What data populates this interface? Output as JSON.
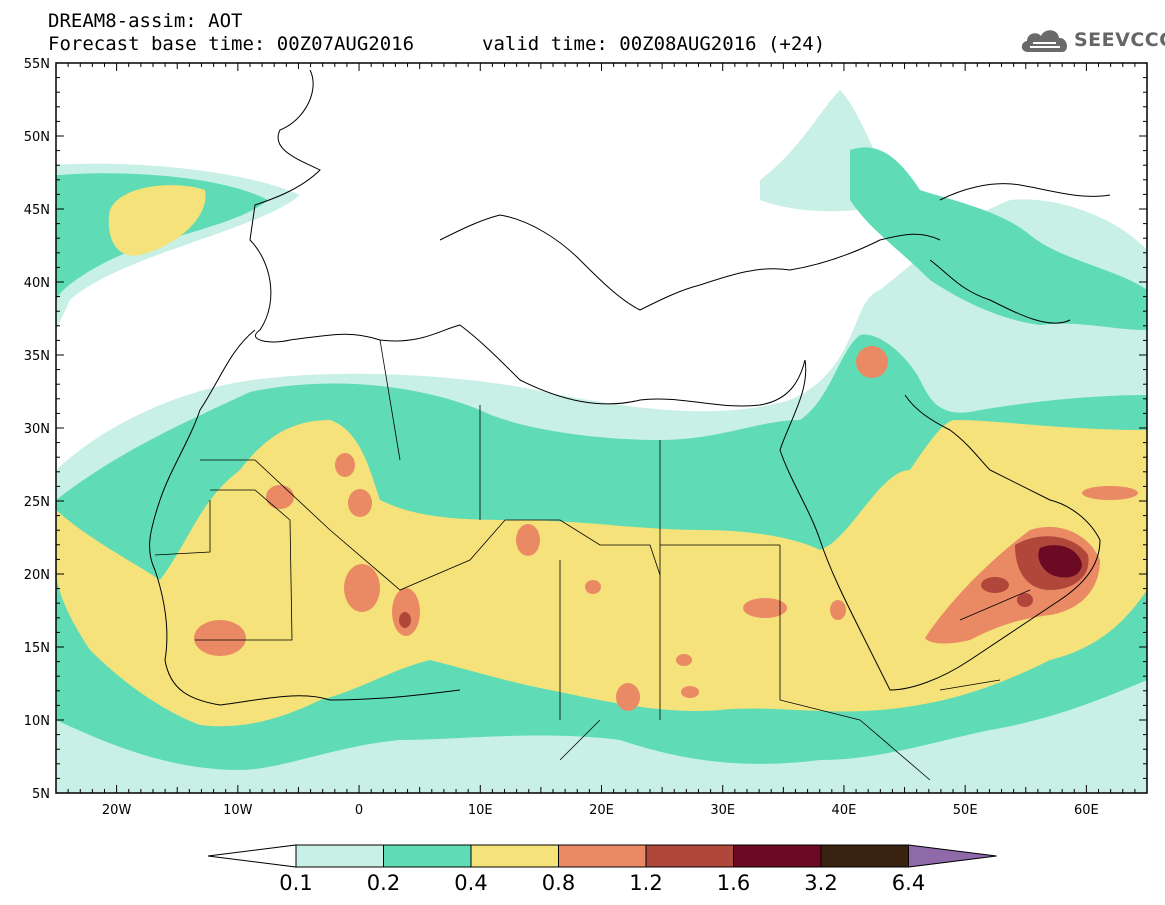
{
  "header": {
    "title": "DREAM8-assim: AOT",
    "base_time": "Forecast base time: 00Z07AUG2016",
    "valid_time": "valid time: 00Z08AUG2016 (+24)"
  },
  "logo": {
    "text": "SEEVCCC",
    "icon": "cloud-icon"
  },
  "map": {
    "lat_labels": [
      "55N",
      "50N",
      "45N",
      "40N",
      "35N",
      "30N",
      "25N",
      "20N",
      "15N",
      "10N",
      "5N"
    ],
    "lon_labels": [
      "20W",
      "10W",
      "0",
      "10E",
      "20E",
      "30E",
      "40E",
      "50E",
      "60E"
    ],
    "lat_values": [
      55,
      50,
      45,
      40,
      35,
      30,
      25,
      20,
      15,
      10,
      5
    ],
    "lon_values": [
      -20,
      -10,
      0,
      10,
      20,
      30,
      40,
      50,
      60
    ],
    "lon_range": [
      -25,
      65
    ],
    "lat_range": [
      5,
      55
    ]
  },
  "colorbar": {
    "labels": [
      "0.1",
      "0.2",
      "0.4",
      "0.8",
      "1.2",
      "1.6",
      "3.2",
      "6.4"
    ],
    "colors": [
      "#ffffff",
      "#c9f0e6",
      "#5fdcb5",
      "#f5e27a",
      "#ea8a64",
      "#b0473a",
      "#6b0a22",
      "#3a2210",
      "#8e6aa8"
    ]
  },
  "chart_data": {
    "type": "heatmap",
    "variable": "AOT",
    "levels": [
      0.1,
      0.2,
      0.4,
      0.8,
      1.2,
      1.6,
      3.2,
      6.4
    ],
    "x_range": [
      -25,
      65
    ],
    "y_range": [
      5,
      55
    ]
  }
}
